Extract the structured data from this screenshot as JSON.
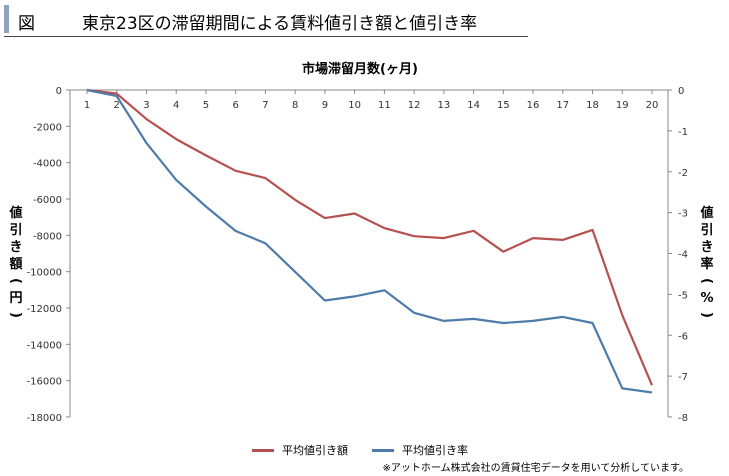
{
  "header": {
    "prefix": "図",
    "title": "東京23区の滞留期間による賃料値引き額と値引き率"
  },
  "chart_data": {
    "type": "line",
    "title": "市場滞留月数(ヶ月)",
    "xlabel": "市場滞留月数(ヶ月)",
    "ylabel": "値引き額(円)",
    "y2label": "値引き率(%)",
    "categories": [
      "1",
      "2",
      "3",
      "4",
      "5",
      "6",
      "7",
      "8",
      "9",
      "10",
      "11",
      "12",
      "13",
      "14",
      "15",
      "16",
      "17",
      "18",
      "19",
      "20"
    ],
    "ylim": [
      -18000,
      0
    ],
    "y_ticks": [
      0,
      -2000,
      -4000,
      -6000,
      -8000,
      -10000,
      -12000,
      -14000,
      -16000,
      -18000
    ],
    "y2lim": [
      -8,
      0
    ],
    "y2_ticks": [
      0,
      -1,
      -2,
      -3,
      -4,
      -5,
      -6,
      -7,
      -8
    ],
    "grid": false,
    "legend_position": "bottom",
    "series": [
      {
        "name": "平均値引き額",
        "axis": "left",
        "color": "#b5514f",
        "values": [
          0,
          -200,
          -1600,
          -2700,
          -3600,
          -4450,
          -4850,
          -6050,
          -7050,
          -6800,
          -7600,
          -8050,
          -8150,
          -7750,
          -8900,
          -8150,
          -8250,
          -7700,
          -12400,
          -16250
        ]
      },
      {
        "name": "平均値引き率",
        "axis": "right",
        "color": "#4f7bab",
        "values": [
          0,
          -0.15,
          -1.3,
          -2.2,
          -2.85,
          -3.45,
          -3.75,
          -4.45,
          -5.15,
          -5.05,
          -4.9,
          -5.45,
          -5.65,
          -5.6,
          -5.7,
          -5.65,
          -5.55,
          -5.7,
          -7.3,
          -7.4
        ]
      }
    ]
  },
  "legend": {
    "items": [
      "平均値引き額",
      "平均値引き率"
    ]
  },
  "footnote": "※アットホーム株式会社の賃貸住宅データを用いて分析しています。"
}
